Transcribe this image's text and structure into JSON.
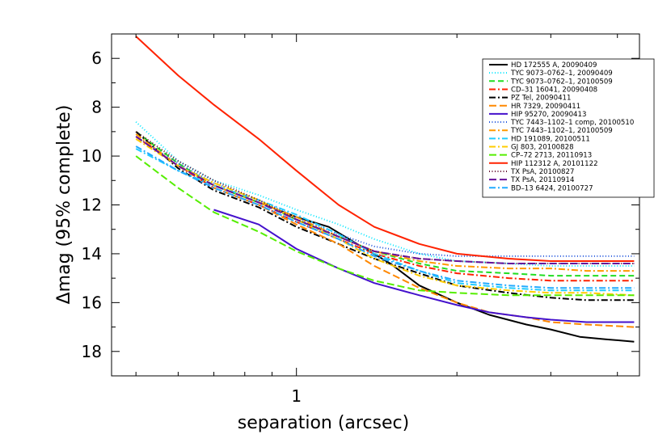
{
  "chart_data": {
    "type": "line",
    "title": "",
    "xlabel": "separation (arcsec)",
    "ylabel": "Δmag (95% complete)",
    "xscale": "log",
    "xlim": [
      0.45,
      4.4
    ],
    "ylim": [
      19,
      5
    ],
    "y_inverted": true,
    "x_ticks": [
      {
        "value": 1,
        "label": "1"
      }
    ],
    "y_ticks": [
      {
        "value": 6,
        "label": "6"
      },
      {
        "value": 8,
        "label": "8"
      },
      {
        "value": 10,
        "label": "10"
      },
      {
        "value": 12,
        "label": "12"
      },
      {
        "value": 14,
        "label": "14"
      },
      {
        "value": 16,
        "label": "16"
      },
      {
        "value": 18,
        "label": "18"
      }
    ],
    "legend_position": "top-right",
    "series": [
      {
        "name": "HD 172555 A, 20090409",
        "color": "#000000",
        "dash": "solid",
        "x": [
          0.7,
          0.85,
          1.0,
          1.15,
          1.3,
          1.5,
          1.7,
          2.0,
          2.3,
          2.7,
          3.0,
          3.4,
          3.8,
          4.3
        ],
        "y": [
          11.2,
          11.9,
          12.5,
          12.9,
          13.6,
          14.4,
          15.3,
          16.0,
          16.5,
          16.9,
          17.1,
          17.4,
          17.5,
          17.6
        ]
      },
      {
        "name": "TYC 9073–0762–1, 20090409",
        "color": "#00e6ff",
        "dash": "1,2.5",
        "x": [
          0.5,
          0.6,
          0.7,
          0.85,
          1.0,
          1.2,
          1.4,
          1.7,
          2.0,
          2.5,
          3.0,
          3.5,
          4.3
        ],
        "y": [
          8.6,
          10.2,
          11.0,
          11.6,
          12.2,
          12.8,
          13.4,
          14.0,
          14.3,
          14.4,
          14.5,
          14.5,
          14.5
        ]
      },
      {
        "name": "TYC 9073–0762–1, 20100509",
        "color": "#22dd22",
        "dash": "7,4",
        "x": [
          0.5,
          0.6,
          0.7,
          0.85,
          1.0,
          1.2,
          1.4,
          1.7,
          2.0,
          2.5,
          3.0,
          3.5,
          4.3
        ],
        "y": [
          9.0,
          10.3,
          11.2,
          11.9,
          12.6,
          13.3,
          13.9,
          14.4,
          14.7,
          14.8,
          14.9,
          14.9,
          14.9
        ]
      },
      {
        "name": "CD–31 16041, 20090408",
        "color": "#ff2200",
        "dash": "8,3,2,3",
        "x": [
          0.5,
          0.6,
          0.7,
          0.85,
          1.0,
          1.2,
          1.4,
          1.7,
          2.0,
          2.5,
          3.0,
          3.5,
          4.3
        ],
        "y": [
          9.2,
          10.4,
          11.3,
          12.0,
          12.7,
          13.4,
          14.0,
          14.5,
          14.8,
          15.0,
          15.1,
          15.1,
          15.1
        ]
      },
      {
        "name": "PZ Tel, 20090411",
        "color": "#000000",
        "dash": "8,3,2,3",
        "x": [
          0.5,
          0.6,
          0.7,
          0.85,
          1.0,
          1.2,
          1.4,
          1.7,
          2.0,
          2.5,
          3.0,
          3.5,
          4.3
        ],
        "y": [
          9.0,
          10.5,
          11.4,
          12.1,
          12.9,
          13.6,
          14.2,
          14.8,
          15.3,
          15.6,
          15.8,
          15.9,
          15.9
        ]
      },
      {
        "name": "HR 7329, 20090411",
        "color": "#ff8800",
        "dash": "9,4",
        "x": [
          0.7,
          0.85,
          1.0,
          1.2,
          1.4,
          1.7,
          2.0,
          2.3,
          2.7,
          3.0,
          3.5,
          4.3
        ],
        "y": [
          11.3,
          12.0,
          12.8,
          13.6,
          14.5,
          15.4,
          16.0,
          16.4,
          16.6,
          16.8,
          16.9,
          17.0
        ]
      },
      {
        "name": "HIP 95270, 20090413",
        "color": "#4411cc",
        "dash": "solid",
        "x": [
          0.7,
          0.85,
          1.0,
          1.2,
          1.4,
          1.7,
          2.0,
          2.3,
          2.7,
          3.0,
          3.5,
          4.3
        ],
        "y": [
          12.2,
          12.8,
          13.8,
          14.6,
          15.2,
          15.7,
          16.1,
          16.4,
          16.6,
          16.7,
          16.8,
          16.8
        ]
      },
      {
        "name": "TYC 7443–1102–1 comp, 20100510",
        "color": "#2255dd",
        "dash": "1,2.5",
        "x": [
          0.5,
          0.6,
          0.7,
          0.85,
          1.0,
          1.2,
          1.4,
          1.7,
          2.0,
          2.5,
          3.0,
          3.5,
          4.3
        ],
        "y": [
          9.2,
          10.3,
          11.1,
          11.8,
          12.5,
          13.2,
          13.7,
          14.0,
          14.1,
          14.1,
          14.1,
          14.1,
          14.1
        ]
      },
      {
        "name": "TYC 7443–1102–1, 20100509",
        "color": "#ff9900",
        "dash": "8,3,2,3",
        "x": [
          0.5,
          0.6,
          0.7,
          0.85,
          1.0,
          1.2,
          1.4,
          1.7,
          2.0,
          2.5,
          3.0,
          3.5,
          4.3
        ],
        "y": [
          9.1,
          10.4,
          11.2,
          11.9,
          12.5,
          13.3,
          13.9,
          14.3,
          14.5,
          14.6,
          14.6,
          14.7,
          14.7
        ]
      },
      {
        "name": "HD 191089, 20100511",
        "color": "#22ccff",
        "dash": "8,3,2,3",
        "x": [
          0.5,
          0.6,
          0.7,
          0.85,
          1.0,
          1.2,
          1.4,
          1.7,
          2.0,
          2.5,
          3.0,
          3.5,
          4.3
        ],
        "y": [
          9.7,
          10.6,
          11.2,
          11.8,
          12.4,
          13.2,
          14.0,
          14.7,
          15.2,
          15.4,
          15.5,
          15.5,
          15.5
        ]
      },
      {
        "name": "GJ 803, 20100828",
        "color": "#ffcc00",
        "dash": "8,3,2,3",
        "x": [
          0.5,
          0.6,
          0.7,
          0.85,
          1.0,
          1.2,
          1.4,
          1.7,
          2.0,
          2.5,
          3.0,
          3.5,
          4.3
        ],
        "y": [
          9.3,
          10.4,
          11.1,
          11.8,
          12.6,
          13.4,
          14.2,
          14.9,
          15.3,
          15.5,
          15.6,
          15.6,
          15.7
        ]
      },
      {
        "name": "CP–72 2713, 20110913",
        "color": "#55ee00",
        "dash": "9,4",
        "x": [
          0.5,
          0.6,
          0.7,
          0.85,
          1.0,
          1.2,
          1.4,
          1.7,
          2.0,
          2.5,
          3.0,
          3.5,
          4.3
        ],
        "y": [
          10.0,
          11.3,
          12.3,
          13.1,
          13.9,
          14.6,
          15.1,
          15.5,
          15.6,
          15.7,
          15.7,
          15.7,
          15.7
        ]
      },
      {
        "name": "HIP 112312 A, 20101122",
        "color": "#ff2200",
        "dash": "solid",
        "x": [
          0.5,
          0.6,
          0.7,
          0.85,
          1.0,
          1.2,
          1.4,
          1.7,
          2.0,
          2.5,
          3.0,
          3.5,
          4.3
        ],
        "y": [
          5.1,
          6.7,
          7.9,
          9.3,
          10.6,
          12.0,
          12.9,
          13.6,
          14.0,
          14.2,
          14.3,
          14.3,
          14.3
        ]
      },
      {
        "name": "TX PsA, 20100827",
        "color": "#661133",
        "dash": "1,2.5",
        "x": [
          0.5,
          0.6,
          0.7,
          0.85,
          1.0,
          1.2,
          1.4,
          1.7,
          2.0,
          2.5,
          3.0,
          3.5,
          4.3
        ],
        "y": [
          9.0,
          10.2,
          11.0,
          11.8,
          12.6,
          13.3,
          13.9,
          14.2,
          14.3,
          14.4,
          14.4,
          14.4,
          14.4
        ]
      },
      {
        "name": "TX PsA, 20110914",
        "color": "#661199",
        "dash": "9,4",
        "x": [
          0.5,
          0.6,
          0.7,
          0.85,
          1.0,
          1.2,
          1.4,
          1.7,
          2.0,
          2.5,
          3.0,
          3.5,
          4.3
        ],
        "y": [
          9.2,
          10.4,
          11.2,
          11.9,
          12.6,
          13.3,
          13.9,
          14.2,
          14.3,
          14.4,
          14.4,
          14.4,
          14.4
        ]
      },
      {
        "name": "BD–13 6424, 20100727",
        "color": "#22aaff",
        "dash": "8,3,2,3",
        "x": [
          0.5,
          0.6,
          0.7,
          0.85,
          1.0,
          1.2,
          1.4,
          1.7,
          2.0,
          2.5,
          3.0,
          3.5,
          4.3
        ],
        "y": [
          9.6,
          10.6,
          11.3,
          12.0,
          12.7,
          13.4,
          14.1,
          14.7,
          15.1,
          15.3,
          15.4,
          15.4,
          15.4
        ]
      }
    ]
  }
}
